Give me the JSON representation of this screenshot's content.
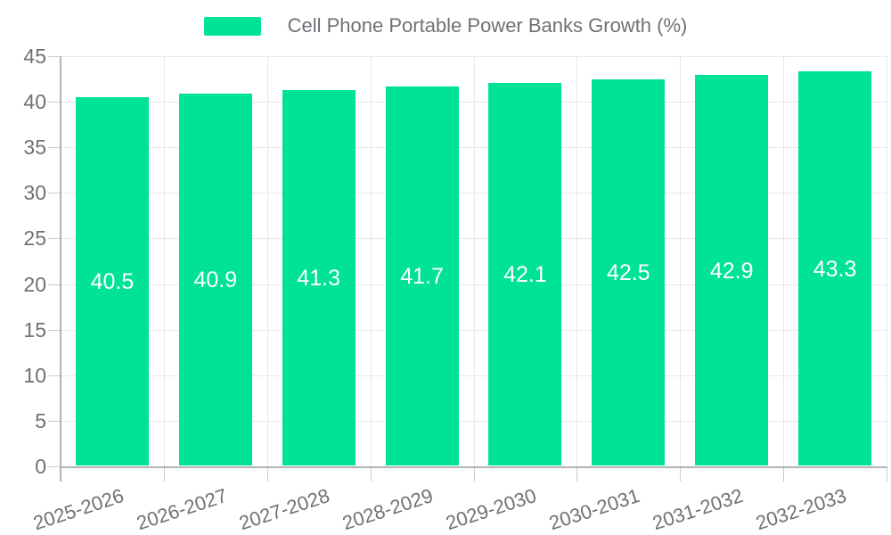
{
  "legend": {
    "label": "Cell Phone Portable Power Banks Growth (%)"
  },
  "colors": {
    "bar": "#00E396",
    "grid": "#e8e8e8",
    "axis_line": "#b0b3b7",
    "tick": "#c8cbd0",
    "text": "#6e7176",
    "value_text": "#ffffff",
    "background": "#ffffff"
  },
  "chart_data": {
    "type": "bar",
    "title": "Cell Phone Portable Power Banks Growth (%)",
    "series_name": "Cell Phone Portable Power Banks Growth (%)",
    "categories": [
      "2025-2026",
      "2026-2027",
      "2027-2028",
      "2028-2029",
      "2029-2030",
      "2030-2031",
      "2031-2032",
      "2032-2033"
    ],
    "values": [
      40.5,
      40.9,
      41.3,
      41.7,
      42.1,
      42.5,
      42.9,
      43.3
    ],
    "value_labels": [
      "40.5",
      "40.9",
      "41.3",
      "41.7",
      "42.1",
      "42.5",
      "42.9",
      "43.3"
    ],
    "xlabel": "",
    "ylabel": "",
    "ylim": [
      0,
      45
    ],
    "yticks": [
      0,
      5,
      10,
      15,
      20,
      25,
      30,
      35,
      40,
      45
    ],
    "grid": true,
    "legend_position": "top",
    "data_labels_position": "inside-center",
    "x_label_rotation_deg": -18
  }
}
